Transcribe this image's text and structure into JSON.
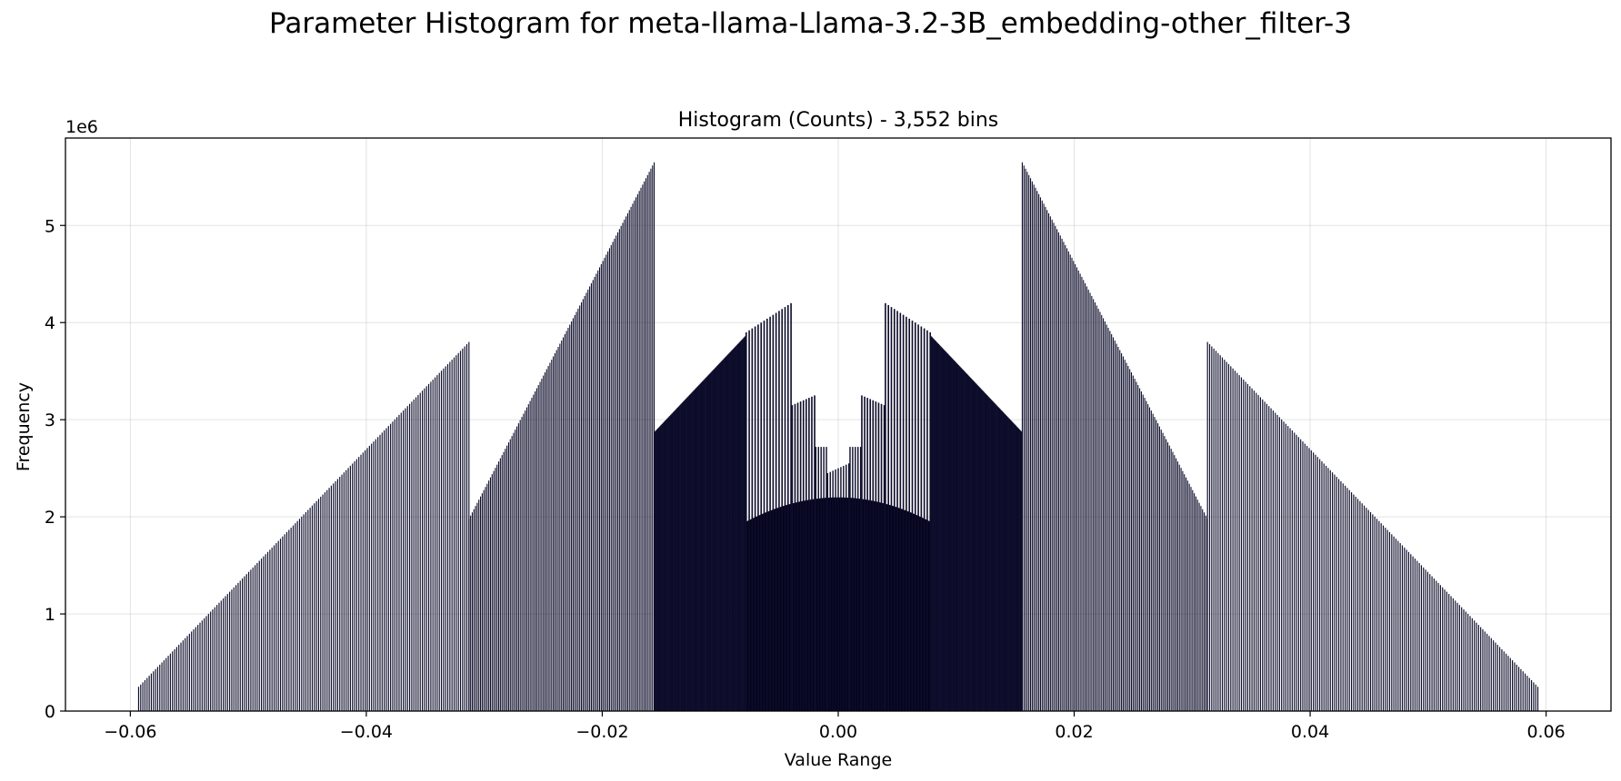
{
  "figure": {
    "suptitle": "Parameter Histogram for meta-llama-Llama-3.2-3B_embedding-other_filter-3"
  },
  "chart_data": {
    "type": "bar",
    "title": "Histogram (Counts) - 3,552 bins",
    "xlabel": "Value Range",
    "ylabel": "Frequency",
    "y_offset_label": "1e6",
    "y_scale": 1000000,
    "xlim": [
      -0.0655,
      0.0655
    ],
    "ylim": [
      0,
      5.9
    ],
    "x_ticks": [
      -0.06,
      -0.04,
      -0.02,
      0.0,
      0.02,
      0.04,
      0.06
    ],
    "x_tick_labels": [
      "−0.06",
      "−0.04",
      "−0.02",
      "0.00",
      "0.02",
      "0.04",
      "0.06"
    ],
    "y_ticks": [
      0,
      1,
      2,
      3,
      4,
      5
    ],
    "y_tick_labels": [
      "0",
      "1",
      "2",
      "3",
      "4",
      "5"
    ],
    "grid": true,
    "bar_color": "#0d0d2b",
    "dense_color": "#04041c",
    "bins": 3552,
    "bin_range": [
      -0.0593,
      0.0593
    ],
    "dense_region": {
      "x": [
        -0.0078,
        0.0078
      ],
      "y_edge": 1.95,
      "y_peak": 2.2
    },
    "segments": [
      {
        "x": [
          -0.0593,
          -0.0313
        ],
        "y": [
          0.25,
          3.8
        ],
        "spacing": 0.00018
      },
      {
        "x": [
          -0.0313,
          -0.0156
        ],
        "y": [
          1.98,
          5.65
        ],
        "spacing": 0.00014
      },
      {
        "x": [
          -0.0156,
          -0.0078
        ],
        "y": [
          2.87,
          3.87
        ],
        "spacing": 6e-05
      },
      {
        "x": [
          -0.0078,
          -0.004
        ],
        "y": [
          3.9,
          4.2
        ],
        "spacing": 0.00025
      },
      {
        "x": [
          -0.0039,
          -0.002
        ],
        "y": [
          3.15,
          3.25
        ],
        "spacing": 0.00025
      },
      {
        "x": [
          -0.0019,
          -0.001
        ],
        "y": [
          2.72,
          2.72
        ],
        "spacing": 0.00022
      },
      {
        "x": [
          -0.0009,
          0.0009
        ],
        "y": [
          2.45,
          2.55
        ],
        "spacing": 0.00022
      },
      {
        "x": [
          0.001,
          0.0019
        ],
        "y": [
          2.72,
          2.72
        ],
        "spacing": 0.00022
      },
      {
        "x": [
          0.002,
          0.0039
        ],
        "y": [
          3.25,
          3.15
        ],
        "spacing": 0.00025
      },
      {
        "x": [
          0.004,
          0.0078
        ],
        "y": [
          4.2,
          3.9
        ],
        "spacing": 0.00025
      },
      {
        "x": [
          0.0078,
          0.0156
        ],
        "y": [
          3.87,
          2.87
        ],
        "spacing": 6e-05
      },
      {
        "x": [
          0.0156,
          0.0313
        ],
        "y": [
          5.65,
          1.98
        ],
        "spacing": 0.00014
      },
      {
        "x": [
          0.0313,
          0.0593
        ],
        "y": [
          3.8,
          0.25
        ],
        "spacing": 0.00018
      }
    ]
  }
}
